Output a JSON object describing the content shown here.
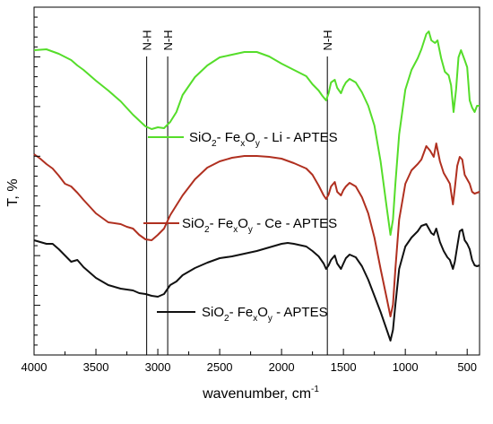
{
  "chart_data": {
    "type": "line",
    "xlabel": "wavenumber, cm",
    "xlabel_sup": "-1",
    "ylabel": "T, %",
    "xlim": [
      4000,
      400
    ],
    "x_ticks": [
      4000,
      3500,
      3000,
      2500,
      2000,
      1500,
      1000,
      500
    ],
    "y_ticks": {
      "major_count": 7,
      "minor_per_major": 4
    },
    "grid": false,
    "markers": [
      {
        "x": 3090,
        "label": "N-H"
      },
      {
        "x": 2920,
        "label": "N-H"
      },
      {
        "x": 1630,
        "label": "N-H"
      }
    ],
    "series": [
      {
        "name": "SiO2- FexOy - Li - APTES",
        "legend": {
          "a": "SiO",
          "b": "2",
          "c": "- Fe",
          "d": "x",
          "e": "O",
          "f": "y",
          "g": " - Li - APTES"
        },
        "color": "#55dd2a",
        "points": [
          [
            4000,
            56
          ],
          [
            3900,
            55
          ],
          [
            3800,
            60
          ],
          [
            3700,
            67
          ],
          [
            3650,
            73
          ],
          [
            3600,
            78
          ],
          [
            3500,
            90
          ],
          [
            3400,
            101
          ],
          [
            3300,
            113
          ],
          [
            3200,
            128
          ],
          [
            3100,
            141
          ],
          [
            3050,
            144
          ],
          [
            3000,
            142
          ],
          [
            2950,
            143
          ],
          [
            2900,
            136
          ],
          [
            2850,
            125
          ],
          [
            2800,
            106
          ],
          [
            2700,
            86
          ],
          [
            2600,
            73
          ],
          [
            2500,
            64
          ],
          [
            2400,
            61
          ],
          [
            2300,
            58
          ],
          [
            2200,
            58
          ],
          [
            2100,
            63
          ],
          [
            2000,
            71
          ],
          [
            1900,
            78
          ],
          [
            1800,
            85
          ],
          [
            1750,
            94
          ],
          [
            1700,
            101
          ],
          [
            1670,
            107
          ],
          [
            1640,
            112
          ],
          [
            1620,
            104
          ],
          [
            1600,
            92
          ],
          [
            1570,
            89
          ],
          [
            1550,
            98
          ],
          [
            1520,
            104
          ],
          [
            1500,
            97
          ],
          [
            1480,
            92
          ],
          [
            1450,
            88
          ],
          [
            1400,
            92
          ],
          [
            1350,
            103
          ],
          [
            1300,
            118
          ],
          [
            1250,
            140
          ],
          [
            1200,
            180
          ],
          [
            1150,
            232
          ],
          [
            1120,
            262
          ],
          [
            1100,
            245
          ],
          [
            1080,
            205
          ],
          [
            1050,
            150
          ],
          [
            1000,
            100
          ],
          [
            950,
            78
          ],
          [
            900,
            65
          ],
          [
            870,
            55
          ],
          [
            830,
            38
          ],
          [
            810,
            35
          ],
          [
            790,
            45
          ],
          [
            760,
            48
          ],
          [
            740,
            45
          ],
          [
            710,
            65
          ],
          [
            680,
            80
          ],
          [
            650,
            84
          ],
          [
            630,
            95
          ],
          [
            610,
            125
          ],
          [
            590,
            100
          ],
          [
            570,
            64
          ],
          [
            550,
            56
          ],
          [
            520,
            67
          ],
          [
            500,
            75
          ],
          [
            480,
            112
          ],
          [
            460,
            120
          ],
          [
            440,
            125
          ],
          [
            420,
            118
          ],
          [
            400,
            118
          ]
        ]
      },
      {
        "name": "SiO2- FexOy - Ce - APTES",
        "legend": {
          "a": "SiO",
          "b": "2",
          "c": "- Fe",
          "d": "x",
          "e": "O",
          "f": "y",
          "g": " - Ce - APTES"
        },
        "color": "#b03020",
        "points": [
          [
            4000,
            172
          ],
          [
            3950,
            177
          ],
          [
            3900,
            183
          ],
          [
            3850,
            188
          ],
          [
            3800,
            196
          ],
          [
            3750,
            205
          ],
          [
            3700,
            208
          ],
          [
            3650,
            215
          ],
          [
            3600,
            223
          ],
          [
            3500,
            238
          ],
          [
            3400,
            248
          ],
          [
            3300,
            250
          ],
          [
            3250,
            253
          ],
          [
            3200,
            255
          ],
          [
            3150,
            262
          ],
          [
            3100,
            267
          ],
          [
            3050,
            268
          ],
          [
            3000,
            262
          ],
          [
            2950,
            255
          ],
          [
            2900,
            240
          ],
          [
            2800,
            218
          ],
          [
            2700,
            200
          ],
          [
            2600,
            187
          ],
          [
            2500,
            180
          ],
          [
            2400,
            176
          ],
          [
            2300,
            174
          ],
          [
            2200,
            174
          ],
          [
            2100,
            175
          ],
          [
            2000,
            177
          ],
          [
            1900,
            182
          ],
          [
            1800,
            188
          ],
          [
            1750,
            195
          ],
          [
            1700,
            207
          ],
          [
            1660,
            218
          ],
          [
            1640,
            222
          ],
          [
            1620,
            217
          ],
          [
            1600,
            208
          ],
          [
            1570,
            203
          ],
          [
            1550,
            214
          ],
          [
            1520,
            218
          ],
          [
            1500,
            212
          ],
          [
            1480,
            208
          ],
          [
            1450,
            204
          ],
          [
            1400,
            208
          ],
          [
            1350,
            220
          ],
          [
            1300,
            238
          ],
          [
            1250,
            265
          ],
          [
            1200,
            300
          ],
          [
            1150,
            333
          ],
          [
            1120,
            353
          ],
          [
            1100,
            340
          ],
          [
            1080,
            300
          ],
          [
            1050,
            245
          ],
          [
            1000,
            205
          ],
          [
            950,
            190
          ],
          [
            900,
            183
          ],
          [
            870,
            178
          ],
          [
            830,
            163
          ],
          [
            800,
            168
          ],
          [
            770,
            175
          ],
          [
            750,
            160
          ],
          [
            720,
            180
          ],
          [
            690,
            193
          ],
          [
            660,
            200
          ],
          [
            640,
            205
          ],
          [
            615,
            228
          ],
          [
            600,
            210
          ],
          [
            580,
            185
          ],
          [
            560,
            175
          ],
          [
            540,
            178
          ],
          [
            520,
            195
          ],
          [
            500,
            200
          ],
          [
            480,
            205
          ],
          [
            460,
            214
          ],
          [
            440,
            216
          ],
          [
            420,
            215
          ],
          [
            400,
            214
          ]
        ]
      },
      {
        "name": "SiO2- FexOy - APTES",
        "legend": {
          "a": "SiO",
          "b": "2",
          "c": "- Fe",
          "d": "x",
          "e": "O",
          "f": "y",
          "g": " - APTES"
        },
        "color": "#111111",
        "points": [
          [
            4000,
            268
          ],
          [
            3950,
            270
          ],
          [
            3900,
            272
          ],
          [
            3850,
            272
          ],
          [
            3800,
            278
          ],
          [
            3750,
            285
          ],
          [
            3700,
            292
          ],
          [
            3650,
            290
          ],
          [
            3600,
            298
          ],
          [
            3550,
            304
          ],
          [
            3500,
            310
          ],
          [
            3400,
            318
          ],
          [
            3300,
            322
          ],
          [
            3200,
            324
          ],
          [
            3150,
            327
          ],
          [
            3100,
            328
          ],
          [
            3050,
            330
          ],
          [
            3000,
            331
          ],
          [
            2950,
            328
          ],
          [
            2900,
            318
          ],
          [
            2850,
            314
          ],
          [
            2800,
            307
          ],
          [
            2700,
            299
          ],
          [
            2600,
            293
          ],
          [
            2500,
            288
          ],
          [
            2400,
            286
          ],
          [
            2300,
            283
          ],
          [
            2200,
            280
          ],
          [
            2100,
            276
          ],
          [
            2000,
            272
          ],
          [
            1950,
            271
          ],
          [
            1900,
            272
          ],
          [
            1800,
            275
          ],
          [
            1750,
            280
          ],
          [
            1700,
            286
          ],
          [
            1660,
            294
          ],
          [
            1640,
            300
          ],
          [
            1620,
            296
          ],
          [
            1600,
            290
          ],
          [
            1570,
            285
          ],
          [
            1550,
            294
          ],
          [
            1520,
            300
          ],
          [
            1500,
            294
          ],
          [
            1480,
            288
          ],
          [
            1450,
            284
          ],
          [
            1400,
            287
          ],
          [
            1350,
            297
          ],
          [
            1300,
            312
          ],
          [
            1250,
            330
          ],
          [
            1200,
            348
          ],
          [
            1150,
            368
          ],
          [
            1120,
            380
          ],
          [
            1100,
            368
          ],
          [
            1080,
            340
          ],
          [
            1050,
            300
          ],
          [
            1000,
            275
          ],
          [
            950,
            265
          ],
          [
            900,
            258
          ],
          [
            870,
            252
          ],
          [
            830,
            250
          ],
          [
            810,
            255
          ],
          [
            790,
            260
          ],
          [
            770,
            262
          ],
          [
            750,
            255
          ],
          [
            720,
            270
          ],
          [
            690,
            280
          ],
          [
            660,
            287
          ],
          [
            640,
            290
          ],
          [
            615,
            300
          ],
          [
            600,
            292
          ],
          [
            580,
            275
          ],
          [
            560,
            258
          ],
          [
            540,
            256
          ],
          [
            520,
            268
          ],
          [
            500,
            272
          ],
          [
            480,
            278
          ],
          [
            460,
            290
          ],
          [
            440,
            296
          ],
          [
            420,
            297
          ],
          [
            400,
            296
          ]
        ]
      }
    ]
  }
}
